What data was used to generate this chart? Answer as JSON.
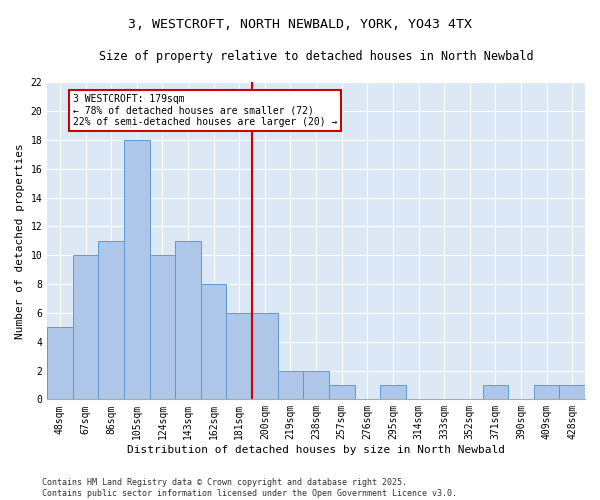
{
  "title1": "3, WESTCROFT, NORTH NEWBALD, YORK, YO43 4TX",
  "title2": "Size of property relative to detached houses in North Newbald",
  "xlabel": "Distribution of detached houses by size in North Newbald",
  "ylabel": "Number of detached properties",
  "bins": [
    "48sqm",
    "67sqm",
    "86sqm",
    "105sqm",
    "124sqm",
    "143sqm",
    "162sqm",
    "181sqm",
    "200sqm",
    "219sqm",
    "238sqm",
    "257sqm",
    "276sqm",
    "295sqm",
    "314sqm",
    "333sqm",
    "352sqm",
    "371sqm",
    "390sqm",
    "409sqm",
    "428sqm"
  ],
  "values": [
    5,
    10,
    11,
    18,
    10,
    11,
    8,
    6,
    6,
    2,
    2,
    1,
    0,
    1,
    0,
    0,
    0,
    1,
    0,
    1,
    1
  ],
  "bar_color": "#aec6e8",
  "bar_edge_color": "#5b9bd5",
  "background_color": "#dce8f5",
  "grid_color": "#ffffff",
  "vline_x": 7.5,
  "vline_color": "#cc0000",
  "annotation_text": "3 WESTCROFT: 179sqm\n← 78% of detached houses are smaller (72)\n22% of semi-detached houses are larger (20) →",
  "annotation_box_color": "#cc0000",
  "ylim": [
    0,
    22
  ],
  "yticks": [
    0,
    2,
    4,
    6,
    8,
    10,
    12,
    14,
    16,
    18,
    20,
    22
  ],
  "footer": "Contains HM Land Registry data © Crown copyright and database right 2025.\nContains public sector information licensed under the Open Government Licence v3.0.",
  "title_fontsize": 9.5,
  "subtitle_fontsize": 8.5,
  "axis_label_fontsize": 8,
  "tick_fontsize": 7,
  "annotation_fontsize": 7,
  "footer_fontsize": 6
}
